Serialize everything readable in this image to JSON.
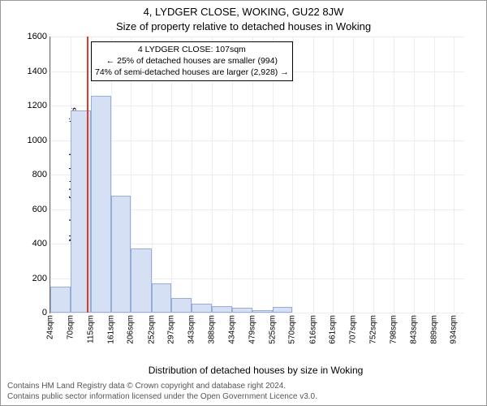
{
  "titles": {
    "line1": "4, LYDGER CLOSE, WOKING, GU22 8JW",
    "line2": "Size of property relative to detached houses in Woking"
  },
  "chart": {
    "type": "histogram",
    "ylabel": "Number of detached properties",
    "xlabel": "Distribution of detached houses by size in Woking",
    "ylim": [
      0,
      1600
    ],
    "ytick_step": 200,
    "yticks": [
      "0",
      "200",
      "400",
      "600",
      "800",
      "1000",
      "1200",
      "1400",
      "1600"
    ],
    "xticks": [
      "24sqm",
      "70sqm",
      "115sqm",
      "161sqm",
      "206sqm",
      "252sqm",
      "297sqm",
      "343sqm",
      "388sqm",
      "434sqm",
      "479sqm",
      "525sqm",
      "570sqm",
      "616sqm",
      "661sqm",
      "707sqm",
      "752sqm",
      "798sqm",
      "843sqm",
      "889sqm",
      "934sqm"
    ],
    "x_min": 24,
    "x_max": 957,
    "bars": [
      {
        "x0": 24,
        "x1": 70,
        "count": 150
      },
      {
        "x0": 70,
        "x1": 115,
        "count": 1170
      },
      {
        "x0": 115,
        "x1": 161,
        "count": 1255
      },
      {
        "x0": 161,
        "x1": 206,
        "count": 680
      },
      {
        "x0": 206,
        "x1": 252,
        "count": 370
      },
      {
        "x0": 252,
        "x1": 297,
        "count": 170
      },
      {
        "x0": 297,
        "x1": 343,
        "count": 85
      },
      {
        "x0": 343,
        "x1": 388,
        "count": 50
      },
      {
        "x0": 388,
        "x1": 434,
        "count": 40
      },
      {
        "x0": 434,
        "x1": 479,
        "count": 30
      },
      {
        "x0": 479,
        "x1": 525,
        "count": 12
      },
      {
        "x0": 525,
        "x1": 570,
        "count": 35
      },
      {
        "x0": 570,
        "x1": 616,
        "count": 0
      },
      {
        "x0": 616,
        "x1": 661,
        "count": 0
      },
      {
        "x0": 661,
        "x1": 707,
        "count": 0
      },
      {
        "x0": 707,
        "x1": 752,
        "count": 0
      },
      {
        "x0": 752,
        "x1": 798,
        "count": 0
      },
      {
        "x0": 798,
        "x1": 843,
        "count": 0
      },
      {
        "x0": 843,
        "x1": 889,
        "count": 0
      },
      {
        "x0": 889,
        "x1": 934,
        "count": 0
      }
    ],
    "bar_fill": "#d5e0f4",
    "bar_stroke": "#96add6",
    "grid_color": "#ececf5",
    "axis_color": "#666666",
    "background_color": "#ffffff",
    "marker": {
      "x": 107,
      "color": "#dc3a2a"
    },
    "annotation": {
      "line1": "4 LYDGER CLOSE: 107sqm",
      "line2": "← 25% of detached houses are smaller (994)",
      "line3": "74% of semi-detached houses are larger (2,928) →"
    }
  },
  "footer": {
    "line1": "Contains HM Land Registry data © Crown copyright and database right 2024.",
    "line2": "Contains public sector information licensed under the Open Government Licence v3.0."
  }
}
